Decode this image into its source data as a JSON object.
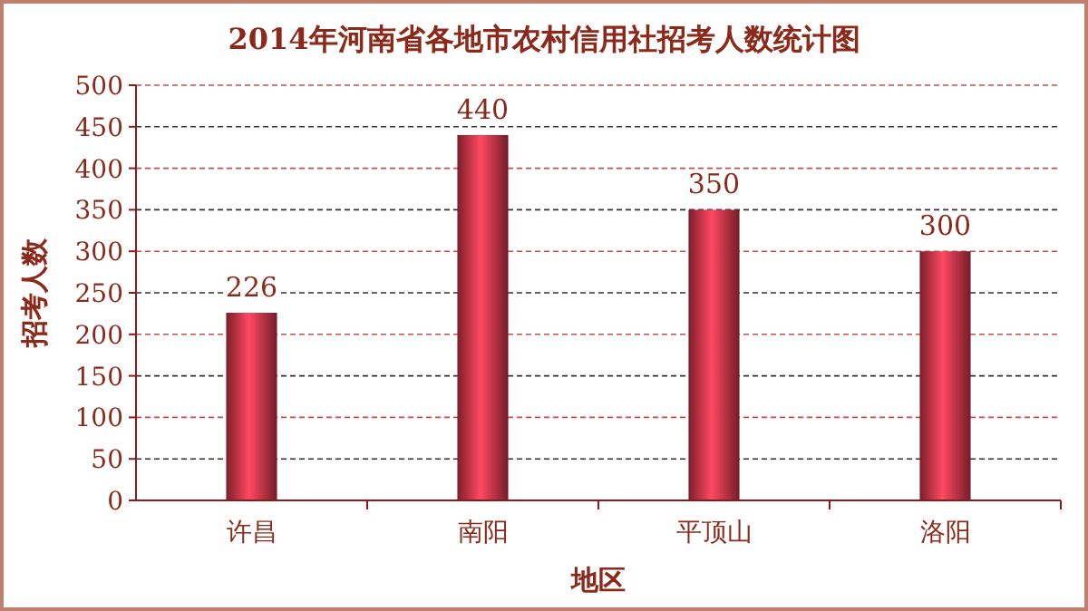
{
  "chart_data": {
    "type": "bar",
    "title": "2014年河南省各地市农村信用社招考人数统计图",
    "xlabel": "地区",
    "ylabel": "招考人数",
    "categories": [
      "许昌",
      "南阳",
      "平顶山",
      "洛阳"
    ],
    "values": [
      226,
      440,
      350,
      300
    ],
    "color": "#b02c3c",
    "ylim": [
      0,
      500
    ],
    "yticks": [
      0,
      50,
      100,
      150,
      200,
      250,
      300,
      350,
      400,
      450,
      500
    ],
    "grid": "y",
    "data_labels": true
  }
}
